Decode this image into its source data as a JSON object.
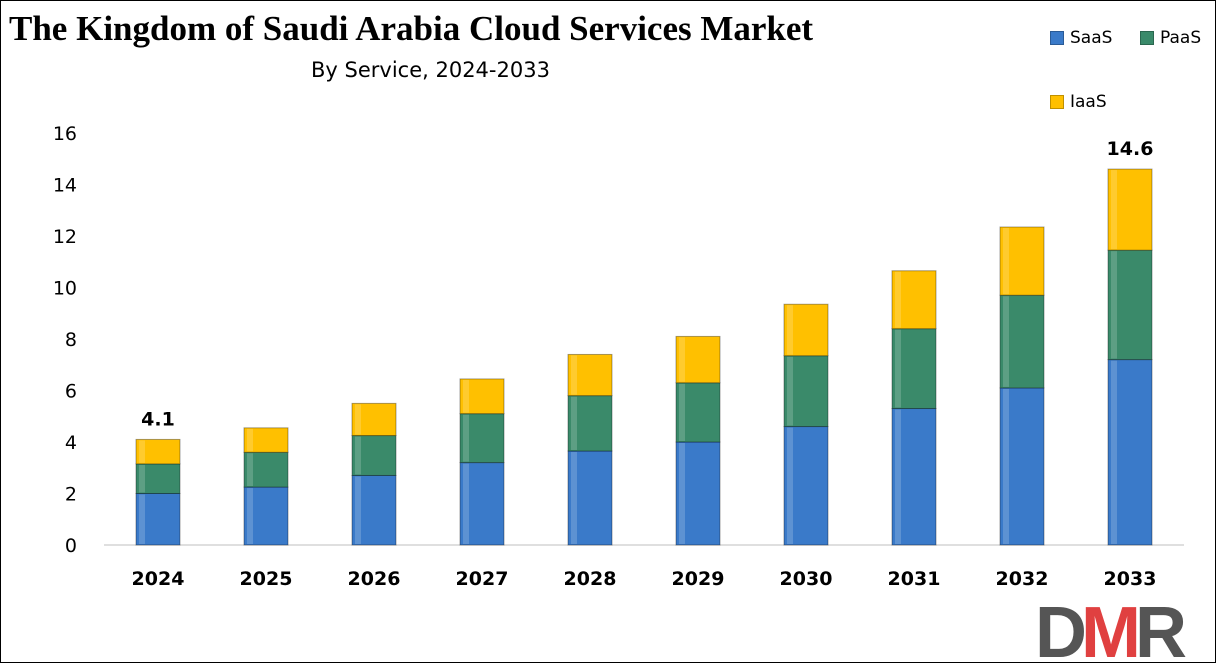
{
  "chart_data": {
    "type": "bar",
    "stacked": true,
    "title": "The Kingdom of Saudi Arabia Cloud Services Market",
    "subtitle": "By Service, 2024-2033",
    "xlabel": "",
    "ylabel": "",
    "ylim": [
      0,
      16
    ],
    "y_ticks": [
      0,
      2,
      4,
      6,
      8,
      10,
      12,
      14,
      16
    ],
    "grid": false,
    "legend_position": "top-right",
    "categories": [
      "2024",
      "2025",
      "2026",
      "2027",
      "2028",
      "2029",
      "2030",
      "2031",
      "2032",
      "2033"
    ],
    "series": [
      {
        "name": "SaaS",
        "color": "#3A7AC9",
        "values": [
          2.0,
          2.25,
          2.7,
          3.2,
          3.65,
          4.0,
          4.6,
          5.3,
          6.1,
          7.2
        ]
      },
      {
        "name": "PaaS",
        "color": "#3A8A6A",
        "values": [
          1.15,
          1.35,
          1.55,
          1.9,
          2.15,
          2.3,
          2.75,
          3.1,
          3.6,
          4.25
        ]
      },
      {
        "name": "IaaS",
        "color": "#FFC000",
        "values": [
          0.95,
          0.95,
          1.25,
          1.35,
          1.6,
          1.8,
          2.0,
          2.25,
          2.65,
          3.15
        ]
      }
    ],
    "annotations": [
      {
        "category": "2024",
        "text": "4.1"
      },
      {
        "category": "2033",
        "text": "14.6"
      }
    ]
  },
  "logo": {
    "text": "DMR",
    "color_dark": "#555555",
    "color_accent": "#E04040"
  }
}
